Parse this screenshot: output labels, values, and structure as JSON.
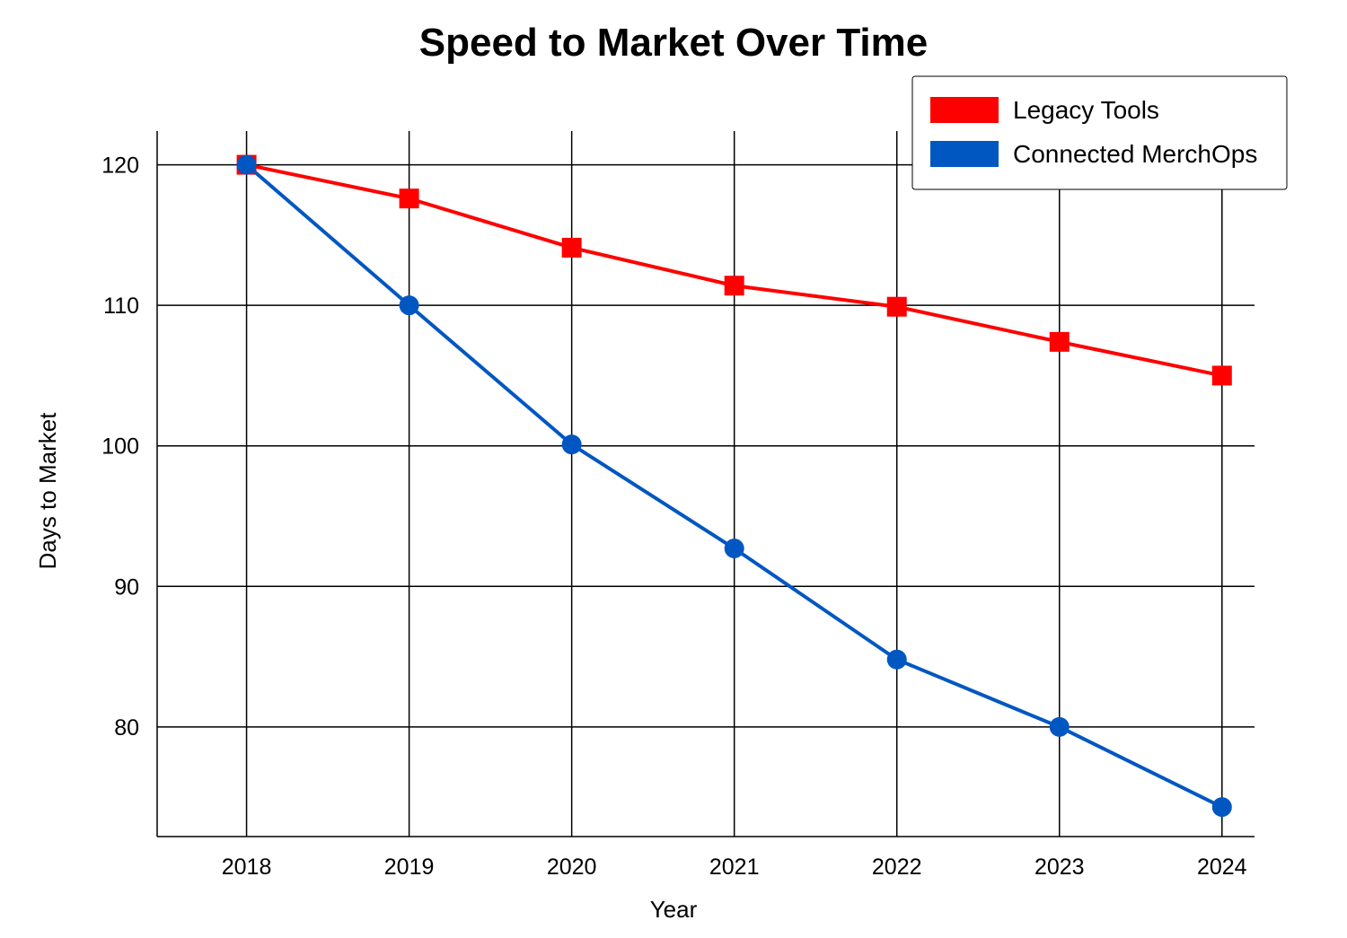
{
  "chart_data": {
    "type": "line",
    "title": "Speed to Market Over Time",
    "xlabel": "Year",
    "ylabel": "Days to Market",
    "x": [
      2018,
      2019,
      2020,
      2021,
      2022,
      2023,
      2024
    ],
    "xlim": [
      2017.45,
      2024.2
    ],
    "ylim": [
      72.2,
      122.4
    ],
    "yticks": [
      80,
      90,
      100,
      110,
      120
    ],
    "grid": true,
    "legend_position": "top-right",
    "series": [
      {
        "name": "Legacy Tools",
        "color": "#ff0000",
        "marker": "square",
        "values": [
          120,
          117.6,
          114.1,
          111.4,
          109.9,
          107.4,
          105.0
        ]
      },
      {
        "name": "Connected MerchOps",
        "color": "#0057c2",
        "marker": "circle",
        "values": [
          120,
          110,
          100.1,
          92.7,
          84.8,
          80,
          74.3
        ]
      }
    ]
  }
}
